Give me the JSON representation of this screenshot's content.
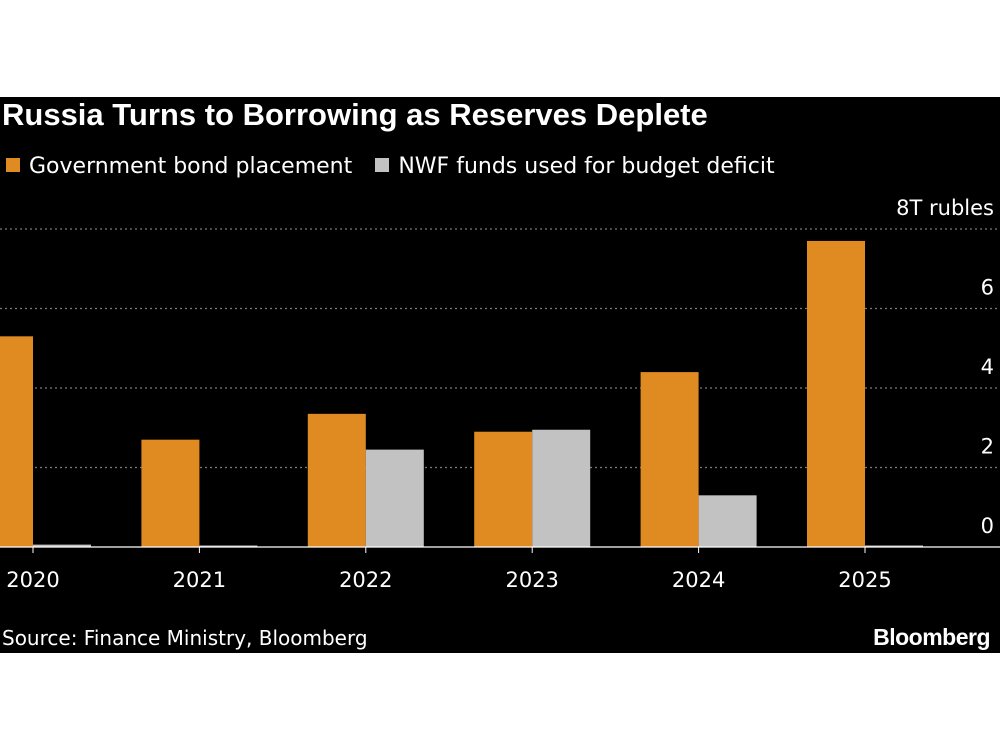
{
  "chart_data": {
    "type": "bar",
    "title": "Russia Turns to Borrowing as Reserves Deplete",
    "categories": [
      "2020",
      "2021",
      "2022",
      "2023",
      "2024",
      "2025"
    ],
    "series": [
      {
        "name": "Government bond placement",
        "color": "#e08a22",
        "values": [
          5.3,
          2.7,
          3.35,
          2.9,
          4.4,
          7.7
        ]
      },
      {
        "name": "NWF funds used for budget deficit",
        "color": "#c2c2c2",
        "values": [
          0.06,
          0.02,
          2.45,
          2.95,
          1.3,
          0.02
        ]
      }
    ],
    "y_tick_labels": [
      "8T rubles",
      "6",
      "4",
      "2",
      "0"
    ],
    "y_ticks": [
      8,
      6,
      4,
      2,
      0
    ],
    "ylim": [
      0,
      8
    ],
    "xlabel": "",
    "ylabel": "8T rubles",
    "grid": true,
    "legend_position": "top-left",
    "source": "Source: Finance Ministry, Bloomberg",
    "brand": "Bloomberg",
    "background_color": "#000000",
    "text_color": "#ffffff"
  }
}
